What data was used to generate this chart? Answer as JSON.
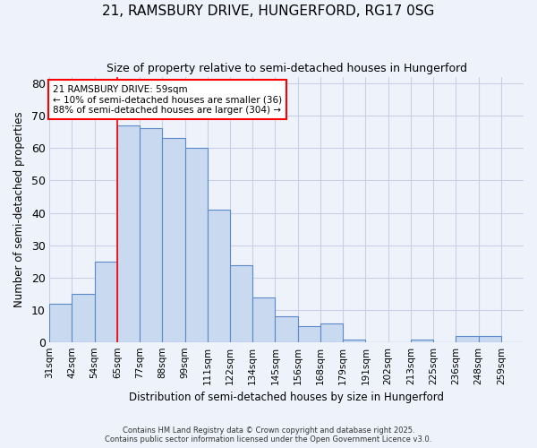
{
  "title": "21, RAMSBURY DRIVE, HUNGERFORD, RG17 0SG",
  "subtitle": "Size of property relative to semi-detached houses in Hungerford",
  "xlabel": "Distribution of semi-detached houses by size in Hungerford",
  "ylabel": "Number of semi-detached properties",
  "categories": [
    "31sqm",
    "42sqm",
    "54sqm",
    "65sqm",
    "77sqm",
    "88sqm",
    "99sqm",
    "111sqm",
    "122sqm",
    "134sqm",
    "145sqm",
    "156sqm",
    "168sqm",
    "179sqm",
    "191sqm",
    "202sqm",
    "213sqm",
    "225sqm",
    "236sqm",
    "248sqm",
    "259sqm"
  ],
  "bar_heights": [
    12,
    15,
    25,
    67,
    66,
    63,
    60,
    41,
    24,
    14,
    8,
    5,
    6,
    1,
    0,
    0,
    1,
    0,
    2,
    2,
    0
  ],
  "bar_color": "#c9d9f0",
  "bar_edge_color": "#5b8ac9",
  "red_line_index": 3,
  "annotation_title": "21 RAMSBURY DRIVE: 59sqm",
  "annotation_line1": "← 10% of semi-detached houses are smaller (36)",
  "annotation_line2": "88% of semi-detached houses are larger (304) →",
  "footnote1": "Contains HM Land Registry data © Crown copyright and database right 2025.",
  "footnote2": "Contains public sector information licensed under the Open Government Licence v3.0.",
  "background_color": "#eef2fb",
  "grid_color": "#c8d0e8",
  "ylim": [
    0,
    82
  ],
  "yticks": [
    0,
    10,
    20,
    30,
    40,
    50,
    60,
    70,
    80
  ]
}
